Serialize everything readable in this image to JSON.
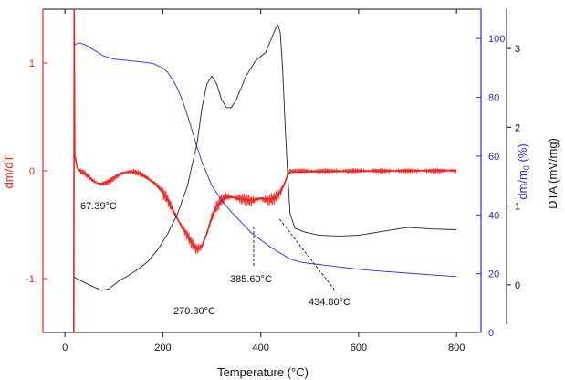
{
  "chart_data": {
    "type": "line",
    "title": "",
    "xlabel": "Temperature (°C)",
    "xlim": [
      -45,
      850
    ],
    "x_ticks": [
      0,
      200,
      400,
      600,
      800
    ],
    "axes": {
      "left": {
        "label": "dm/dT",
        "range": [
          -1.5,
          1.5
        ],
        "ticks": [
          -1,
          0,
          1
        ],
        "color": "#e8251b"
      },
      "right1": {
        "label_main": "dm/m",
        "label_sub": "0",
        "label_unit": " (%)",
        "range": [
          0,
          110
        ],
        "ticks": [
          0,
          20,
          40,
          60,
          80,
          100
        ],
        "color": "#2b2bdc"
      },
      "right2": {
        "label": "DTA (mV/mg)",
        "range": [
          -0.5,
          3.5
        ],
        "ticks": [
          0,
          1,
          2,
          3
        ],
        "color": "#111111"
      }
    },
    "series": [
      {
        "axis": "left",
        "color": "#e8251b",
        "x": [
          18,
          19,
          20,
          25,
          30,
          40,
          50,
          60,
          70,
          80,
          90,
          100,
          110,
          120,
          130,
          140,
          150,
          160,
          170,
          180,
          190,
          200,
          210,
          220,
          230,
          240,
          250,
          260,
          270,
          280,
          290,
          300,
          310,
          320,
          330,
          340,
          350,
          360,
          370,
          380,
          390,
          400,
          410,
          420,
          430,
          440,
          450,
          455,
          460,
          470,
          500,
          600,
          700,
          800
        ],
        "y": [
          -1.5,
          1.5,
          0.15,
          0.03,
          0.0,
          -0.02,
          -0.06,
          -0.1,
          -0.12,
          -0.12,
          -0.1,
          -0.07,
          -0.04,
          -0.02,
          -0.01,
          -0.01,
          -0.02,
          -0.04,
          -0.07,
          -0.1,
          -0.14,
          -0.2,
          -0.27,
          -0.36,
          -0.45,
          -0.53,
          -0.6,
          -0.68,
          -0.73,
          -0.7,
          -0.58,
          -0.43,
          -0.33,
          -0.27,
          -0.24,
          -0.24,
          -0.25,
          -0.26,
          -0.27,
          -0.28,
          -0.27,
          -0.26,
          -0.27,
          -0.27,
          -0.25,
          -0.2,
          -0.1,
          -0.03,
          0.0,
          0.0,
          0.0,
          0.0,
          0.0,
          0.0
        ]
      },
      {
        "axis": "right1",
        "color": "#2b2bdc",
        "x": [
          18,
          20,
          30,
          40,
          60,
          80,
          100,
          130,
          160,
          180,
          200,
          210,
          220,
          230,
          240,
          250,
          260,
          270,
          280,
          290,
          300,
          320,
          340,
          360,
          380,
          400,
          420,
          440,
          460,
          480,
          500,
          550,
          600,
          650,
          700,
          750,
          800
        ],
        "y": [
          98,
          98,
          98.5,
          98,
          96,
          94,
          93,
          92.5,
          92,
          91.5,
          90,
          88.5,
          86,
          83,
          79,
          74,
          68.5,
          63,
          58,
          54,
          50,
          45,
          41,
          37.5,
          34,
          31.5,
          29,
          27,
          25,
          24,
          23.5,
          22.5,
          21.5,
          20.8,
          20.2,
          19.6,
          19
        ]
      },
      {
        "axis": "right2",
        "color": "#222222",
        "x": [
          18,
          40,
          60,
          75,
          90,
          110,
          130,
          150,
          170,
          190,
          210,
          230,
          250,
          270,
          280,
          290,
          300,
          310,
          320,
          330,
          340,
          350,
          360,
          370,
          380,
          390,
          400,
          410,
          420,
          430,
          435,
          440,
          445,
          450,
          455,
          460,
          470,
          490,
          520,
          560,
          600,
          650,
          700,
          750,
          800
        ],
        "y": [
          0.1,
          0.03,
          -0.03,
          -0.07,
          -0.05,
          0.05,
          0.12,
          0.2,
          0.3,
          0.45,
          0.65,
          0.9,
          1.25,
          1.8,
          2.25,
          2.55,
          2.65,
          2.55,
          2.35,
          2.25,
          2.25,
          2.35,
          2.5,
          2.65,
          2.75,
          2.85,
          2.9,
          2.95,
          3.1,
          3.25,
          3.3,
          3.2,
          2.7,
          2.0,
          1.4,
          0.9,
          0.72,
          0.67,
          0.63,
          0.62,
          0.63,
          0.68,
          0.73,
          0.71,
          0.7
        ]
      }
    ],
    "annotations": [
      {
        "text": "67.39°C",
        "x": 67.39
      },
      {
        "text": "270.30°C",
        "x": 270.3
      },
      {
        "text": "385.60°C",
        "x": 385.6
      },
      {
        "text": "434.80°C",
        "x": 434.8
      }
    ]
  }
}
